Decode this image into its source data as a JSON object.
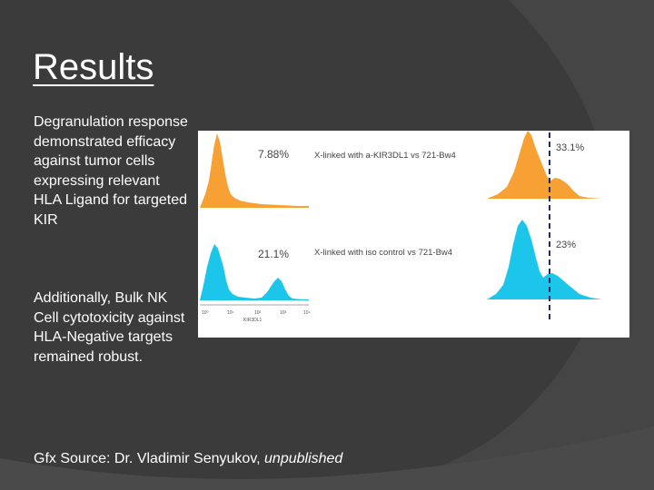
{
  "slide": {
    "title": "Results",
    "paragraph1": "Degranulation response demonstrated efficacy against tumor cells expressing relevant HLA Ligand for targeted KIR",
    "paragraph2": "Additionally, Bulk NK Cell cytotoxicity against HLA-Negative targets remained robust.",
    "source_prefix": "Gfx Source: Dr. Vladimir Senyukov, ",
    "source_italic": "unpublished"
  },
  "figure": {
    "top_row": {
      "left_pct": "7.88%",
      "label": "X-linked with a-KIR3DL1 vs 721-Bw4",
      "right_pct": "33.1%",
      "color": "#f7a033"
    },
    "bottom_row": {
      "left_pct": "21.1%",
      "label": "X-linked with iso control vs 721-Bw4",
      "right_pct": "23%",
      "color": "#1cc6ea"
    },
    "axis": {
      "ticks": [
        "10⁰",
        "10¹",
        "10²",
        "10³",
        "10⁴"
      ],
      "xlabel": "KIR3DL1"
    }
  }
}
